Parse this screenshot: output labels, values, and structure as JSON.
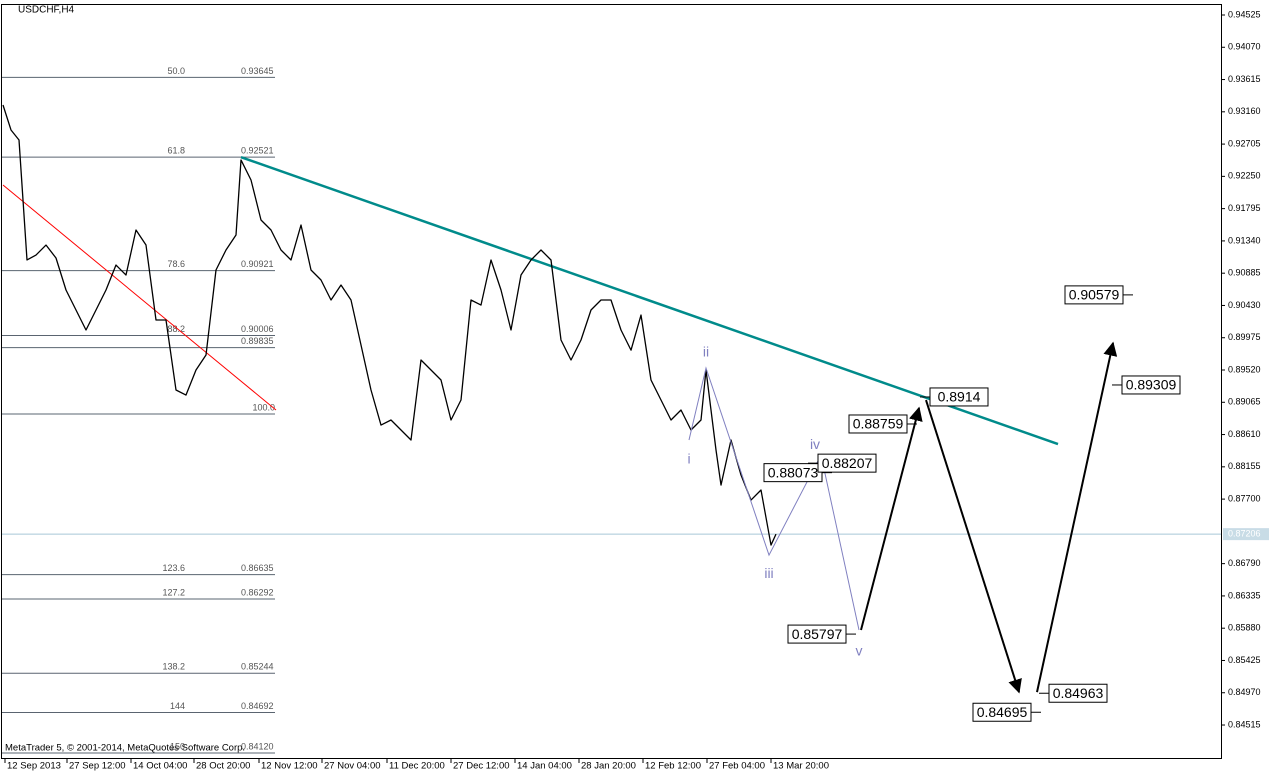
{
  "chart_data": {
    "type": "line",
    "title": "USDCHF,H4",
    "footer": "MetaTrader 5, © 2001-2014, MetaQuotes Software Corp.",
    "color": "#000000",
    "xlim": [
      0,
      1220
    ],
    "ylim": [
      0.8405,
      0.9468
    ],
    "xticks": [
      {
        "value": 4,
        "label": "12 Sep 2013"
      },
      {
        "value": 66,
        "label": "27 Sep 12:00"
      },
      {
        "value": 130,
        "label": "14 Oct 04:00"
      },
      {
        "value": 193,
        "label": "28 Oct 20:00"
      },
      {
        "value": 258,
        "label": "12 Nov 12:00"
      },
      {
        "value": 321,
        "label": "27 Nov 04:00"
      },
      {
        "value": 386,
        "label": "11 Dec 20:00"
      },
      {
        "value": 450,
        "label": "27 Dec 12:00"
      },
      {
        "value": 514,
        "label": "14 Jan 04:00"
      },
      {
        "value": 578,
        "label": "28 Jan 20:00"
      },
      {
        "value": 642,
        "label": "12 Feb 12:00"
      },
      {
        "value": 706,
        "label": "27 Feb 04:00"
      },
      {
        "value": 770,
        "label": "13 Mar 20:00"
      }
    ],
    "yticks": [
      0.94525,
      {
        "value": 0.9407,
        "label": "0.94070"
      },
      0.93615,
      {
        "value": 0.9316,
        "label": "0.93160"
      },
      0.92705,
      {
        "value": 0.9225,
        "label": "0.92250"
      },
      0.91795,
      {
        "value": 0.9134,
        "label": "0.91340"
      },
      0.90885,
      {
        "value": 0.9043,
        "label": "0.90430"
      },
      0.89975,
      {
        "value": 0.8952,
        "label": "0.89520"
      },
      0.89065,
      {
        "value": 0.8861,
        "label": "0.88610"
      },
      0.88155,
      {
        "value": 0.877,
        "label": "0.87700"
      },
      {
        "value": 0.8679,
        "label": "0.86790"
      },
      0.86335,
      {
        "value": 0.8588,
        "label": "0.85880"
      },
      0.85425,
      {
        "value": 0.8497,
        "label": "0.84970"
      },
      0.84515
    ],
    "current_price": 0.87206,
    "x": [
      2,
      10,
      18,
      26,
      35,
      45,
      55,
      65,
      75,
      85,
      95,
      105,
      115,
      125,
      135,
      145,
      155,
      165,
      175,
      185,
      195,
      205,
      215,
      225,
      235,
      240,
      250,
      260,
      270,
      280,
      290,
      300,
      310,
      320,
      330,
      340,
      350,
      360,
      370,
      380,
      390,
      400,
      410,
      420,
      430,
      440,
      450,
      460,
      470,
      480,
      490,
      500,
      510,
      520,
      530,
      540,
      550,
      560,
      570,
      580,
      590,
      600,
      610,
      620,
      630,
      640,
      650,
      660,
      670,
      680,
      690,
      700,
      705,
      715,
      720,
      730,
      740,
      750,
      760,
      770,
      775
    ],
    "values": [
      0.93256,
      0.92904,
      0.92763,
      0.91071,
      0.91141,
      0.91282,
      0.91099,
      0.90648,
      0.90366,
      0.90084,
      0.90366,
      0.90648,
      0.91,
      0.90859,
      0.91494,
      0.91282,
      0.90225,
      0.90225,
      0.89238,
      0.89167,
      0.8952,
      0.89731,
      0.9093,
      0.91212,
      0.91423,
      0.92481,
      0.92199,
      0.91635,
      0.91494,
      0.91212,
      0.91071,
      0.91564,
      0.9093,
      0.90789,
      0.90507,
      0.90718,
      0.90507,
      0.89872,
      0.89238,
      0.88744,
      0.88815,
      0.88674,
      0.88533,
      0.89661,
      0.8952,
      0.89379,
      0.88815,
      0.89097,
      0.90507,
      0.90436,
      0.91071,
      0.90648,
      0.90084,
      0.90859,
      0.91071,
      0.91212,
      0.91071,
      0.89943,
      0.89661,
      0.89943,
      0.90366,
      0.90507,
      0.90507,
      0.90084,
      0.898,
      0.90295,
      0.89379,
      0.89097,
      0.88815,
      0.88956,
      0.88674,
      0.88815,
      0.8952,
      0.88392,
      0.87898,
      0.88533,
      0.88039,
      0.87687,
      0.87828,
      0.87052,
      0.87206
    ],
    "fib_levels": [
      {
        "level": "50.0",
        "price": 0.93645
      },
      {
        "level": "61.8",
        "price": 0.92521
      },
      {
        "level": "78.6",
        "price": 0.90921
      },
      {
        "level": "88.2",
        "price": 0.90006
      },
      {
        "level": null,
        "price": 0.89835
      },
      {
        "level": "100.0",
        "price": 0.88899,
        "show_price": false
      },
      {
        "level": "123.6",
        "price": 0.86635
      },
      {
        "level": "127.2",
        "price": 0.86292
      },
      {
        "level": "138.2",
        "price": 0.85244
      },
      {
        "level": "144",
        "price": 0.84692
      },
      {
        "level": "150",
        "price": {
          "value": 0.8412,
          "label": "0.84120"
        }
      }
    ],
    "trendlines": [
      {
        "color": "#008b8b",
        "x": [
          240,
          1057
        ],
        "values": [
          0.92521,
          0.88476
        ]
      },
      {
        "color": "#ff0000",
        "x": [
          2,
          275
        ],
        "values": [
          0.92128,
          0.88956
        ]
      }
    ],
    "waves": {
      "color": "#8080c0",
      "labels": [
        "i",
        "ii",
        "iii",
        "iv",
        "v"
      ],
      "x": [
        688,
        705,
        768,
        820,
        858
      ],
      "values": [
        0.88533,
        0.89548,
        0.86911,
        0.88321,
        0.85854
      ]
    },
    "projection": {
      "color": "#000000",
      "segments": [
        {
          "x": [
            860,
            918
          ],
          "values": [
            0.85854,
            0.88984
          ]
        },
        {
          "x": [
            925,
            1018
          ],
          "values": [
            0.89097,
            0.84979
          ]
        },
        {
          "x": [
            1036,
            1112
          ],
          "values": [
            0.84979,
            0.899
          ]
        }
      ]
    },
    "price_labels": [
      0.88073,
      0.88207,
      0.88759,
      0.8914,
      0.85797,
      0.84695,
      0.84963,
      0.89309,
      0.90579
    ]
  }
}
